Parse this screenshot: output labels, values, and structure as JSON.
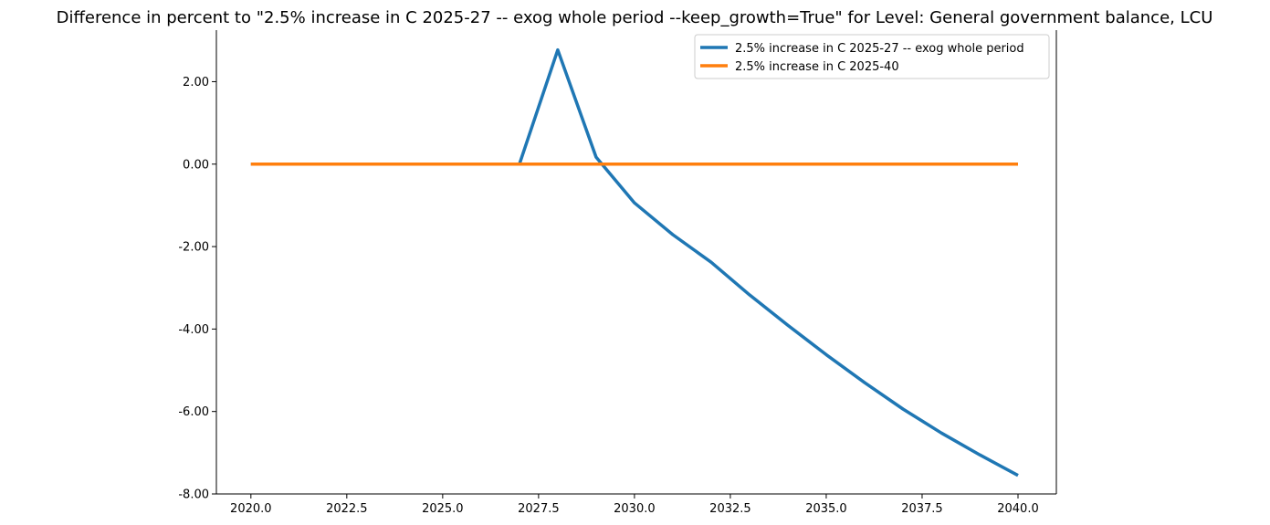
{
  "chart_data": {
    "type": "line",
    "title": "Difference in percent to \"2.5% increase in C 2025-27 -- exog whole period --keep_growth=True\" for Level: General government balance, LCU",
    "xlabel": "",
    "ylabel": "",
    "x": [
      2020,
      2021,
      2022,
      2023,
      2024,
      2025,
      2026,
      2027,
      2028,
      2029,
      2030,
      2031,
      2032,
      2033,
      2034,
      2035,
      2036,
      2037,
      2038,
      2039,
      2040
    ],
    "series": [
      {
        "name": "2.5% increase in C 2025-27 -- exog whole period",
        "color": "#1f77b4",
        "values": [
          0,
          0,
          0,
          0,
          0,
          0,
          0,
          0,
          2.77,
          0.17,
          -0.94,
          -1.71,
          -2.38,
          -3.17,
          -3.91,
          -4.62,
          -5.3,
          -5.94,
          -6.52,
          -7.05,
          -7.55
        ]
      },
      {
        "name": "2.5% increase in C 2025-40",
        "color": "#ff7f0e",
        "values": [
          0,
          0,
          0,
          0,
          0,
          0,
          0,
          0,
          0,
          0,
          0,
          0,
          0,
          0,
          0,
          0,
          0,
          0,
          0,
          0,
          0
        ]
      }
    ],
    "xlim": [
      2019.1,
      2041.0
    ],
    "ylim": [
      -8.0,
      3.25
    ],
    "xticks": [
      2020.0,
      2022.5,
      2025.0,
      2027.5,
      2030.0,
      2032.5,
      2035.0,
      2037.5,
      2040.0
    ],
    "xtick_labels": [
      "2020.0",
      "2022.5",
      "2025.0",
      "2027.5",
      "2030.0",
      "2032.5",
      "2035.0",
      "2037.5",
      "2040.0"
    ],
    "yticks": [
      2,
      0,
      -2,
      -4,
      -6,
      -8
    ],
    "ytick_labels": [
      "2.00",
      "0.00",
      "-2.00",
      "-4.00",
      "-6.00",
      "-8.00"
    ],
    "grid": false,
    "legend_position": "top-right"
  }
}
